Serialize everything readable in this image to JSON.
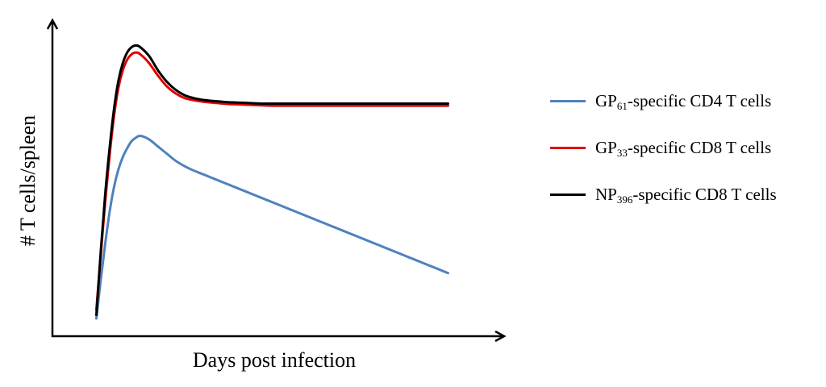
{
  "chart_data": {
    "type": "line",
    "title": "",
    "xlabel": "Days post infection",
    "ylabel": "# T cells/spleen",
    "x": [
      0,
      0.5,
      1,
      1.5,
      2,
      2.5,
      3,
      3.5,
      4,
      4.5,
      5,
      6,
      7,
      8,
      9,
      10,
      11,
      12,
      13,
      14,
      15,
      16,
      17,
      18,
      19,
      20,
      21,
      22,
      23,
      24,
      25,
      26,
      27,
      28,
      29,
      30,
      31,
      32,
      33,
      34,
      35,
      36,
      37,
      38,
      39,
      40
    ],
    "xlim": [
      -5,
      45
    ],
    "ylim": [
      -0.3,
      8.5
    ],
    "grid": false,
    "legend_position": "right",
    "series": [
      {
        "name": "GP61-specific CD4 T cells",
        "label_base": "GP",
        "label_sub": "61",
        "label_rest": "-specific CD4 T cells",
        "color": "#4F81BD",
        "values": [
          0.2,
          1.3,
          2.3,
          3.2,
          3.9,
          4.4,
          4.75,
          5.0,
          5.2,
          5.3,
          5.35,
          5.25,
          5.05,
          4.85,
          4.65,
          4.5,
          4.38,
          4.28,
          4.18,
          4.08,
          3.98,
          3.88,
          3.78,
          3.68,
          3.58,
          3.48,
          3.38,
          3.28,
          3.18,
          3.08,
          2.98,
          2.88,
          2.78,
          2.68,
          2.58,
          2.48,
          2.38,
          2.28,
          2.18,
          2.08,
          1.98,
          1.88,
          1.78,
          1.68,
          1.58,
          1.48
        ]
      },
      {
        "name": "GP33-specific CD8 T cells",
        "label_base": "GP",
        "label_sub": "33",
        "label_rest": "-specific CD8 T cells",
        "color": "#E00000",
        "values": [
          0.45,
          2.0,
          3.5,
          4.8,
          5.9,
          6.7,
          7.2,
          7.5,
          7.65,
          7.7,
          7.65,
          7.4,
          7.05,
          6.75,
          6.55,
          6.42,
          6.36,
          6.32,
          6.29,
          6.27,
          6.25,
          6.24,
          6.23,
          6.22,
          6.21,
          6.2,
          6.2,
          6.2,
          6.2,
          6.2,
          6.2,
          6.2,
          6.2,
          6.2,
          6.2,
          6.2,
          6.2,
          6.2,
          6.2,
          6.2,
          6.2,
          6.2,
          6.2,
          6.2,
          6.2,
          6.2
        ]
      },
      {
        "name": "NP396-specific CD8 T cells",
        "label_base": "NP",
        "label_sub": "396",
        "label_rest": "-specific CD8 T cells",
        "color": "#000000",
        "values": [
          0.3,
          2.1,
          3.7,
          5.0,
          6.1,
          6.9,
          7.4,
          7.7,
          7.85,
          7.9,
          7.85,
          7.6,
          7.2,
          6.88,
          6.65,
          6.5,
          6.42,
          6.37,
          6.34,
          6.32,
          6.3,
          6.29,
          6.28,
          6.27,
          6.26,
          6.26,
          6.26,
          6.26,
          6.26,
          6.26,
          6.26,
          6.26,
          6.26,
          6.26,
          6.26,
          6.26,
          6.26,
          6.26,
          6.26,
          6.26,
          6.26,
          6.26,
          6.26,
          6.26,
          6.26,
          6.26
        ]
      }
    ]
  }
}
